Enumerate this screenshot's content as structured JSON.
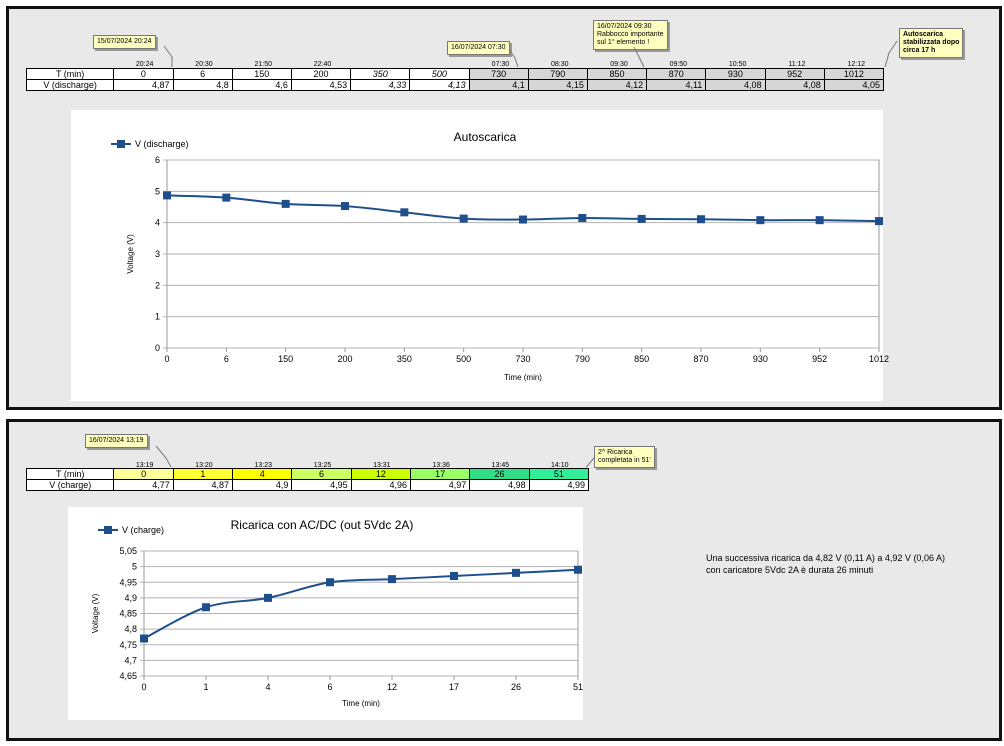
{
  "section1": {
    "row_labels": {
      "t": "T (min)",
      "v": "V (discharge)"
    },
    "times": [
      "20:24",
      "20:30",
      "21:50",
      "22:40",
      "",
      "",
      "07:30",
      "08:30",
      "09:30",
      "09:50",
      "10:50",
      "11:12",
      "12:12"
    ],
    "T": [
      "0",
      "6",
      "150",
      "200",
      "350",
      "500",
      "730",
      "790",
      "850",
      "870",
      "930",
      "952",
      "1012"
    ],
    "V": [
      "4,87",
      "4,8",
      "4,6",
      "4,53",
      "4,33",
      "4,13",
      "4,1",
      "4,15",
      "4,12",
      "4,11",
      "4,08",
      "4,08",
      "4,05"
    ],
    "notes": {
      "n1": "15/07/2024 20:24",
      "n2": "16/07/2024 07:30",
      "n3_l1": "16/07/2024 09:30",
      "n3_l2": "Rabbocco importante",
      "n3_l3": "sul 1° elemento !",
      "n4_l1": "Autoscarica",
      "n4_l2": "stabilizzata dopo",
      "n4_l3": "circa 17 h"
    }
  },
  "section2": {
    "row_labels": {
      "t": "T (min)",
      "v": "V (charge)"
    },
    "times": [
      "13:19",
      "13:20",
      "13:23",
      "13:25",
      "13:31",
      "13:36",
      "13:45",
      "14:10"
    ],
    "T": [
      "0",
      "1",
      "4",
      "6",
      "12",
      "17",
      "26",
      "51"
    ],
    "V": [
      "4,77",
      "4,87",
      "4,9",
      "4,95",
      "4,96",
      "4,97",
      "4,98",
      "4,99"
    ],
    "cell_colors": [
      "#ffff99",
      "#ffff33",
      "#ffff00",
      "#ccff66",
      "#ccff00",
      "#99ff66",
      "#33dd88",
      "#33ee99"
    ],
    "notes": {
      "n1": "16/07/2024 13:19",
      "n2_l1": "2^ Ricarica",
      "n2_l2": "completata in 51'"
    },
    "description_l1": "Una successiva ricarica da 4,82 V (0,11 A) a 4,92 V (0,06 A)",
    "description_l2": "con caricatore 5Vdc 2A è durata 26 minuti"
  },
  "chart_data": [
    {
      "type": "line",
      "title": "Autoscarica",
      "xlabel": "Time (min)",
      "ylabel": "Voltage (V)",
      "categories": [
        "0",
        "6",
        "150",
        "200",
        "350",
        "500",
        "730",
        "790",
        "850",
        "870",
        "930",
        "952",
        "1012"
      ],
      "series": [
        {
          "name": "V (discharge)",
          "values": [
            4.87,
            4.8,
            4.6,
            4.53,
            4.33,
            4.13,
            4.1,
            4.15,
            4.12,
            4.11,
            4.08,
            4.08,
            4.05
          ]
        }
      ],
      "ylim": [
        0,
        6
      ],
      "yticks": [
        "0",
        "1",
        "2",
        "3",
        "4",
        "5",
        "6"
      ],
      "grid": true,
      "legend": "top-left",
      "color": "#1f4e8c"
    },
    {
      "type": "line",
      "title": "Ricarica con AC/DC (out 5Vdc 2A)",
      "xlabel": "Time (min)",
      "ylabel": "Voltage (V)",
      "categories": [
        "0",
        "1",
        "4",
        "6",
        "12",
        "17",
        "26",
        "51"
      ],
      "series": [
        {
          "name": "V (charge)",
          "values": [
            4.77,
            4.87,
            4.9,
            4.95,
            4.96,
            4.97,
            4.98,
            4.99
          ]
        }
      ],
      "ylim": [
        4.65,
        5.05
      ],
      "yticks": [
        "4,65",
        "4,7",
        "4,75",
        "4,8",
        "4,85",
        "4,9",
        "4,95",
        "5",
        "5,05"
      ],
      "grid": true,
      "legend": "top-left",
      "color": "#1f4e8c"
    }
  ]
}
